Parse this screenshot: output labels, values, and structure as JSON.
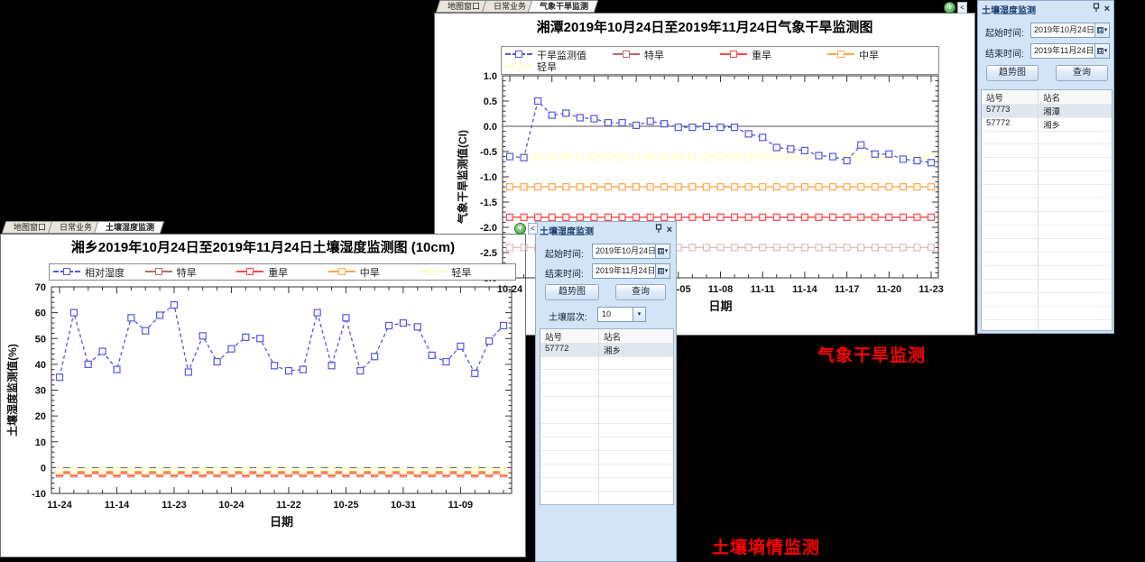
{
  "annotations": {
    "drought_label": "气象干旱监测",
    "soil_label": "土壤墒情监测"
  },
  "drought_window": {
    "tabs": [
      "地图窗口",
      "日常业务",
      "气象干旱监测"
    ],
    "active_tab": 2,
    "add_button": "+",
    "collapse_arrow": "<"
  },
  "soil_window": {
    "tabs": [
      "地图窗口",
      "日常业务",
      "土壤湿度监测"
    ],
    "active_tab": 2,
    "add_button": "+",
    "collapse_arrow": "<"
  },
  "drought_panel": {
    "title": "土壤湿度监测",
    "start_label": "起始时间:",
    "start_value": "2019年10月24日",
    "end_label": "结束时间:",
    "end_value": "2019年11月24日",
    "trend_button": "趋势图",
    "query_button": "查询",
    "close_label": "×",
    "table": {
      "headers": [
        "站号",
        "站名"
      ],
      "rows": [
        {
          "id": "57773",
          "name": "湘潭",
          "selected": true
        },
        {
          "id": "57772",
          "name": "湘乡",
          "selected": false
        }
      ]
    }
  },
  "soil_panel": {
    "title": "土壤湿度监测",
    "start_label": "起始时间:",
    "start_value": "2019年10月24日",
    "end_label": "结束时间:",
    "end_value": "2019年11月24日",
    "trend_button": "趋势图",
    "query_button": "查询",
    "layer_label": "土壤层次:",
    "layer_value": "10",
    "close_label": "×",
    "table": {
      "headers": [
        "站号",
        "站名"
      ],
      "rows": [
        {
          "id": "57772",
          "name": "湘乡",
          "selected": true
        }
      ]
    }
  },
  "chart_data": [
    {
      "id": "drought",
      "type": "line",
      "title": "湘潭2019年10月24日至2019年11月24日气象干旱监测图",
      "xlabel": "日期",
      "ylabel": "气象干旱监测值(CI)",
      "ylim": [
        -3.0,
        1.0
      ],
      "ytick_step": 0.5,
      "y_decimals": 1,
      "zero_line": 0,
      "legend_columns": 4,
      "x_label_every": 3,
      "x": [
        "10-24",
        "10-25",
        "10-26",
        "10-27",
        "10-28",
        "10-29",
        "10-30",
        "10-31",
        "11-01",
        "11-02",
        "11-03",
        "11-04",
        "11-05",
        "11-06",
        "11-07",
        "11-08",
        "11-09",
        "11-10",
        "11-11",
        "11-12",
        "11-13",
        "11-14",
        "11-15",
        "11-16",
        "11-17",
        "11-18",
        "11-19",
        "11-20",
        "11-21",
        "11-22",
        "11-23"
      ],
      "series": [
        {
          "name": "干旱监测值",
          "color": "#5757e0",
          "dash": "4 3",
          "values": [
            -0.6,
            -0.62,
            0.5,
            0.22,
            0.26,
            0.17,
            0.15,
            0.07,
            0.07,
            0.02,
            0.1,
            0.05,
            -0.02,
            -0.02,
            0.0,
            -0.02,
            -0.02,
            -0.15,
            -0.22,
            -0.42,
            -0.45,
            -0.48,
            -0.58,
            -0.6,
            -0.68,
            -0.37,
            -0.55,
            -0.55,
            -0.65,
            -0.68,
            -0.72
          ]
        },
        {
          "name": "特旱",
          "color": "#b96a6a",
          "line_opacity": 0.45,
          "const": -2.4
        },
        {
          "name": "重旱",
          "color": "#ff4646",
          "const": -1.8
        },
        {
          "name": "中旱",
          "color": "#ffa94d",
          "const": -1.2
        },
        {
          "name": "轻旱",
          "color": "#ffffc0",
          "const": -0.6
        }
      ]
    },
    {
      "id": "soil",
      "type": "line",
      "title": "湘乡2019年10月24日至2019年11月24日土壤湿度监测图 (10cm)",
      "xlabel": "日期",
      "ylabel": "土壤湿度监测值(%)",
      "ylim": [
        -10,
        70
      ],
      "ytick_step": 10,
      "y_decimals": 0,
      "zero_line": 0,
      "legend_columns": 5,
      "x_label_every": 4,
      "n_points": 32,
      "x_tick_labels": [
        "11-24",
        "11-14",
        "11-23",
        "10-24",
        "11-22",
        "10-25",
        "10-31",
        "11-09"
      ],
      "series": [
        {
          "name": "相对湿度",
          "color": "#5757e0",
          "dash": "4 3",
          "values": [
            35,
            60,
            40,
            45,
            38,
            58,
            53,
            59,
            63,
            37,
            51,
            41,
            46,
            50.5,
            50,
            39.5,
            37.5,
            38,
            60,
            39.5,
            58,
            37.5,
            43,
            55,
            56,
            54.5,
            43.5,
            41,
            47,
            36.5,
            49,
            55
          ]
        },
        {
          "name": "特旱",
          "color": "#b96a6a",
          "line_opacity": 0.5,
          "const": -2.5
        },
        {
          "name": "重旱",
          "color": "#ff4646",
          "const": -2
        },
        {
          "name": "中旱",
          "color": "#ffa94d",
          "const": -1.5
        },
        {
          "name": "轻旱",
          "color": "#ffffc0",
          "const": -1
        }
      ]
    }
  ]
}
